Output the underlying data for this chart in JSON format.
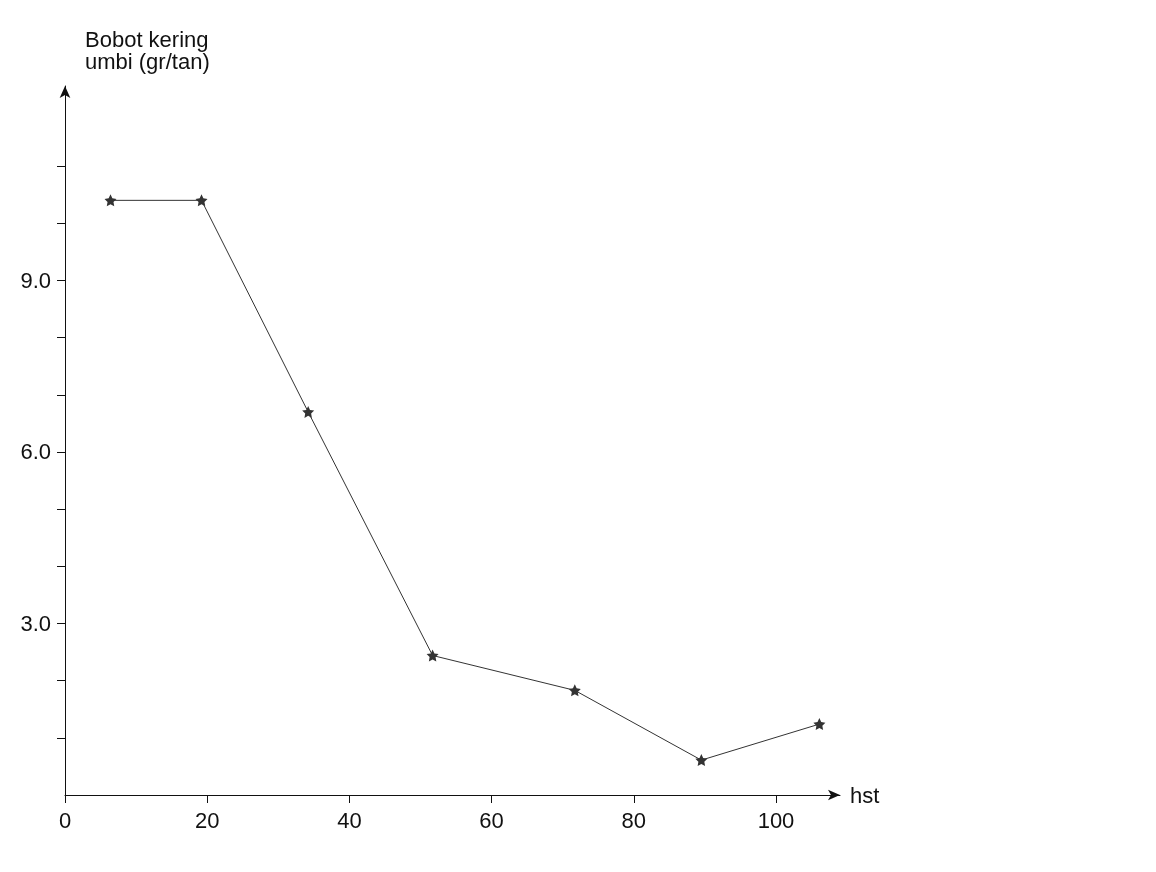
{
  "chart_data": {
    "type": "line",
    "ylabel": "Bobot kering\numbi (gr/tan)",
    "xlabel": "hst",
    "x": [
      6.4,
      19.2,
      34.2,
      51.7,
      71.7,
      89.5,
      106.1
    ],
    "series": [
      {
        "color": "#333333",
        "values": [
          10.4,
          10.4,
          6.7,
          2.44,
          1.83,
          0.61,
          1.24
        ]
      }
    ],
    "xlim": [
      0,
      109
    ],
    "xticks": [
      0,
      20,
      40,
      60,
      80,
      100
    ],
    "ylim": [
      0,
      12.4
    ],
    "yticks": [
      {
        "value": 1,
        "label": null
      },
      {
        "value": 2,
        "label": null
      },
      {
        "value": 3,
        "label": "3.0"
      },
      {
        "value": 4,
        "label": null
      },
      {
        "value": 5,
        "label": null
      },
      {
        "value": 6,
        "label": "6.0"
      },
      {
        "value": 7,
        "label": null
      },
      {
        "value": 8,
        "label": null
      },
      {
        "value": 9,
        "label": "9.0"
      },
      {
        "value": 10,
        "label": null
      },
      {
        "value": 11,
        "label": null
      }
    ],
    "marker": "star",
    "line_style": "solid",
    "grid": false
  }
}
